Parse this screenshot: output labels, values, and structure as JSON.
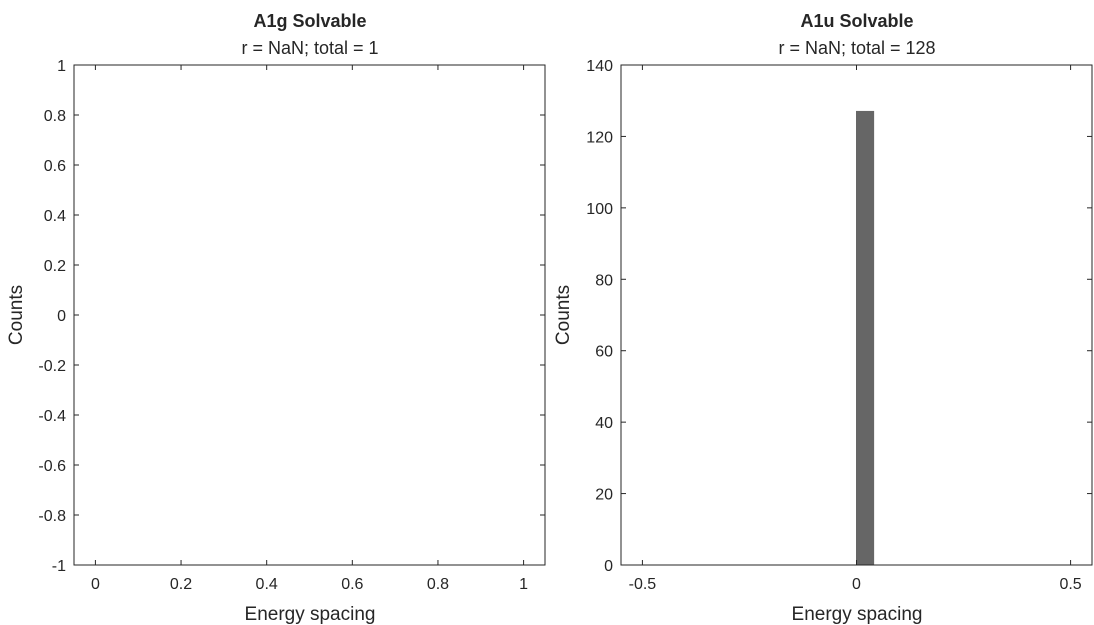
{
  "chart_data": [
    {
      "type": "bar",
      "title": "A1g Solvable",
      "subtitle": "r = NaN; total = 1",
      "xlabel": "Energy spacing",
      "ylabel": "Counts",
      "xlim": [
        -0.05,
        1.05
      ],
      "ylim": [
        -1,
        1
      ],
      "xticks": [
        0,
        0.2,
        0.4,
        0.6,
        0.8,
        1
      ],
      "xtick_labels": [
        "0",
        "0.2",
        "0.4",
        "0.6",
        "0.8",
        "1"
      ],
      "yticks": [
        -1,
        -0.8,
        -0.6,
        -0.4,
        -0.2,
        0,
        0.2,
        0.4,
        0.6,
        0.8,
        1
      ],
      "ytick_labels": [
        "-1",
        "-0.8",
        "-0.6",
        "-0.4",
        "-0.2",
        "0",
        "0.2",
        "0.4",
        "0.6",
        "0.8",
        "1"
      ],
      "bars": [],
      "bar_color": "#666666",
      "grid": false
    },
    {
      "type": "bar",
      "title": "A1u Solvable",
      "subtitle": "r = NaN; total = 128",
      "xlabel": "Energy spacing",
      "ylabel": "Counts",
      "xlim": [
        -0.55,
        0.55
      ],
      "ylim": [
        0,
        140
      ],
      "xticks": [
        -0.5,
        0,
        0.5
      ],
      "xtick_labels": [
        "-0.5",
        "0",
        "0.5"
      ],
      "yticks": [
        0,
        20,
        40,
        60,
        80,
        100,
        120,
        140
      ],
      "ytick_labels": [
        "0",
        "20",
        "40",
        "60",
        "80",
        "100",
        "120",
        "140"
      ],
      "bars": [
        {
          "x0": 0.0,
          "x1": 0.04,
          "value": 127
        }
      ],
      "bar_color": "#666666",
      "grid": false
    }
  ]
}
